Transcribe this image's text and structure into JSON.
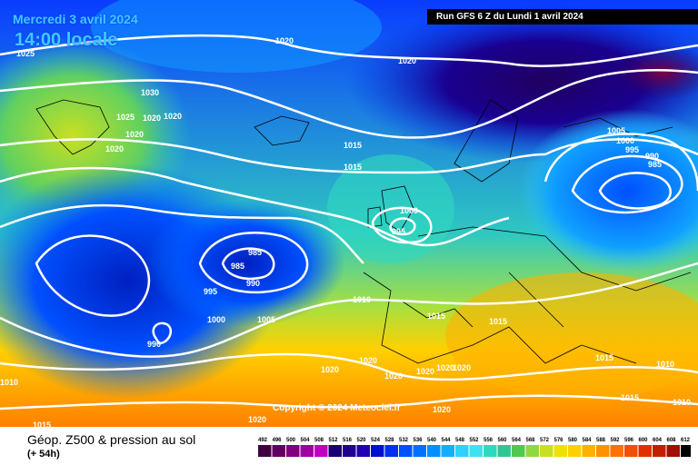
{
  "header": {
    "date": "Mercredi 3 avril 2024",
    "time": "14:00 locale",
    "run": "Run GFS 6 Z du Lundi 1 avril 2024"
  },
  "copyright": "Copyright © 2024 Meteociel.fr",
  "footer": {
    "title": "Géop. Z500 & pression au sol",
    "subtitle": "(+ 54h)"
  },
  "scale": {
    "labels": [
      "492",
      "496",
      "500",
      "504",
      "508",
      "512",
      "516",
      "520",
      "524",
      "528",
      "532",
      "536",
      "540",
      "544",
      "548",
      "552",
      "556",
      "560",
      "564",
      "568",
      "572",
      "576",
      "580",
      "584",
      "588",
      "592",
      "596",
      "600",
      "604",
      "608",
      "612"
    ],
    "colors": [
      "#400040",
      "#600060",
      "#800080",
      "#a000a0",
      "#c000c0",
      "#1a0070",
      "#200090",
      "#2000b0",
      "#0010d0",
      "#0030f0",
      "#0050ff",
      "#0070ff",
      "#0090ff",
      "#10b0ff",
      "#30d0ff",
      "#40e0f0",
      "#30d8c0",
      "#30c890",
      "#50c850",
      "#90d840",
      "#c8e020",
      "#f0e000",
      "#ffd000",
      "#ffb000",
      "#ff9000",
      "#ff7000",
      "#f05000",
      "#e03000",
      "#c02000",
      "#a01000",
      "#000000"
    ]
  },
  "isobars": [
    {
      "value": "1020",
      "pos": "n-atlantic"
    },
    {
      "value": "1025",
      "pos": "greenland"
    },
    {
      "value": "1030",
      "pos": "greenland"
    },
    {
      "value": "1015",
      "pos": "atlantic"
    },
    {
      "value": "1000",
      "pos": "uk"
    },
    {
      "value": "995",
      "pos": "uk"
    },
    {
      "value": "985",
      "pos": "atlantic-low"
    },
    {
      "value": "990",
      "pos": "atlantic-low"
    },
    {
      "value": "1005",
      "pos": "russia"
    },
    {
      "value": "1010",
      "pos": "europe"
    }
  ],
  "pressure_labels": [
    "1020",
    "1025",
    "1030",
    "1025",
    "1020",
    "1020",
    "1020",
    "1020",
    "1020",
    "1015",
    "1015",
    "1000",
    "995",
    "985",
    "985",
    "990",
    "995",
    "1000",
    "1005",
    "990",
    "1010",
    "1015",
    "1015",
    "1005",
    "1000",
    "995",
    "990",
    "985",
    "1020",
    "1020",
    "1020",
    "1020",
    "1020",
    "1020",
    "1015",
    "1015",
    "1010",
    "1010",
    "1010",
    "1015",
    "1020",
    "1020"
  ]
}
